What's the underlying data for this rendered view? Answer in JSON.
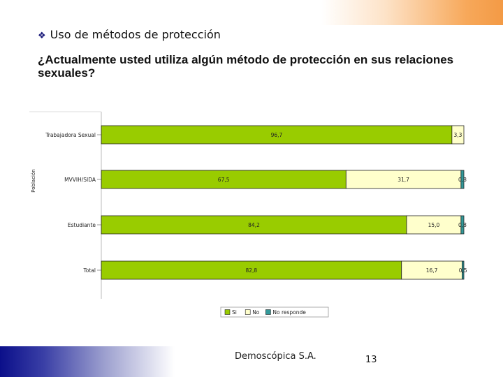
{
  "slide": {
    "bullet_icon": "diamond-bullet-icon",
    "section_title": "Uso de métodos de protección",
    "question": "¿Actualmente usted utiliza algún método de protección en sus relaciones sexuales?",
    "footer_left": "Demoscópica S.A.",
    "page_number": "13",
    "colors": {
      "top_accent": "#f39a45",
      "bottom_accent": "#0b0f8a"
    }
  },
  "chart_data": {
    "type": "bar",
    "orientation": "horizontal",
    "stacked": true,
    "ylabel": "Población",
    "categories": [
      "Trabajadora Sexual",
      "MVVIH/SIDA",
      "Estudiante",
      "Total"
    ],
    "series": [
      {
        "name": "Si",
        "color": "#99cc00",
        "values": [
          96.7,
          67.5,
          84.2,
          82.8
        ],
        "labels": [
          "96,7",
          "67,5",
          "84,2",
          "82,8"
        ]
      },
      {
        "name": "No",
        "color": "#ffffcc",
        "values": [
          3.3,
          31.7,
          15.0,
          16.7
        ],
        "labels": [
          "3,3",
          "31,7",
          "15,0",
          "16,7"
        ]
      },
      {
        "name": "No responde",
        "color": "#33999a",
        "values": [
          0.0,
          0.8,
          0.8,
          0.5
        ],
        "labels": [
          "",
          "0,8",
          "0,8",
          "0,5"
        ]
      }
    ],
    "xlim": [
      0,
      100
    ],
    "legend_position": "bottom",
    "grid": false
  }
}
